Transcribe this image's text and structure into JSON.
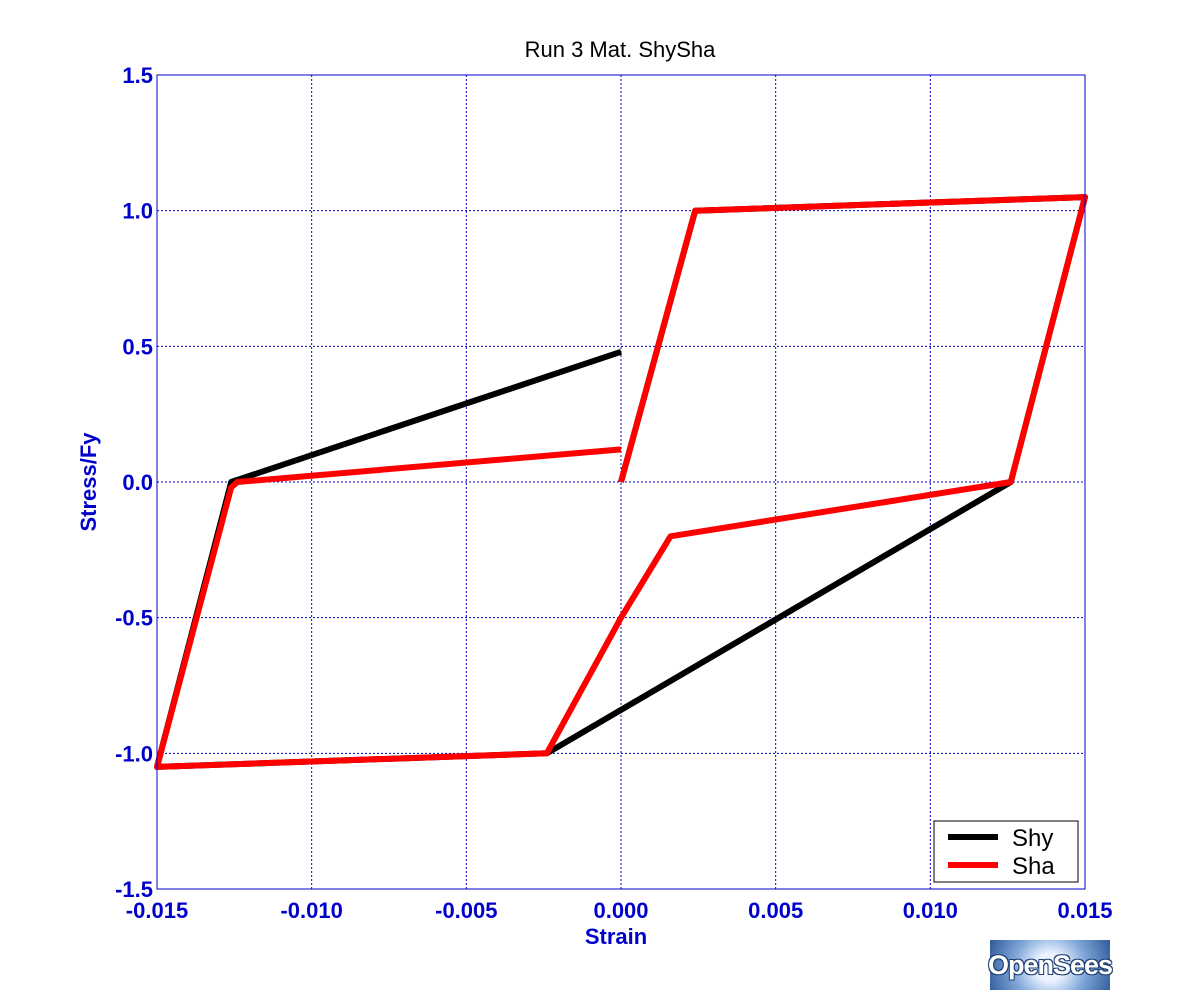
{
  "chart_data": {
    "type": "line",
    "title": "Run 3   Mat. ShySha",
    "xlabel": "Strain",
    "ylabel": "Stress/Fy",
    "xlim": [
      -0.015,
      0.015
    ],
    "ylim": [
      -1.5,
      1.5
    ],
    "xticks": [
      -0.015,
      -0.01,
      -0.005,
      0.0,
      0.005,
      0.01,
      0.015
    ],
    "xtick_labels": [
      "-0.015",
      "-0.010",
      "-0.005",
      "0.000",
      "0.005",
      "0.010",
      "0.015"
    ],
    "yticks": [
      -1.5,
      -1.0,
      -0.5,
      0.0,
      0.5,
      1.0,
      1.5
    ],
    "ytick_labels": [
      "-1.5",
      "-1.0",
      "-0.5",
      "0.0",
      "0.5",
      "1.0",
      "1.5"
    ],
    "grid": true,
    "legend_position": "bottom-right",
    "series": [
      {
        "name": "Shy",
        "color": "#000000",
        "x": [
          0.0,
          0.0024,
          0.015,
          0.0126,
          -0.0024,
          -0.015,
          -0.0126,
          0.0
        ],
        "y": [
          0.0,
          1.0,
          1.05,
          0.0,
          -1.0,
          -1.05,
          0.0,
          0.48
        ]
      },
      {
        "name": "Sha",
        "color": "#ff0000",
        "x": [
          0.0,
          0.0022,
          0.0024,
          0.015,
          0.0126,
          0.0016,
          0.0,
          -0.0024,
          -0.015,
          -0.0126,
          -0.0124,
          0.0
        ],
        "y": [
          0.0,
          0.92,
          1.0,
          1.05,
          0.0,
          -0.2,
          -0.5,
          -1.0,
          -1.05,
          -0.02,
          0.0,
          0.12
        ]
      }
    ]
  },
  "logo": {
    "text": "OpenSees"
  }
}
